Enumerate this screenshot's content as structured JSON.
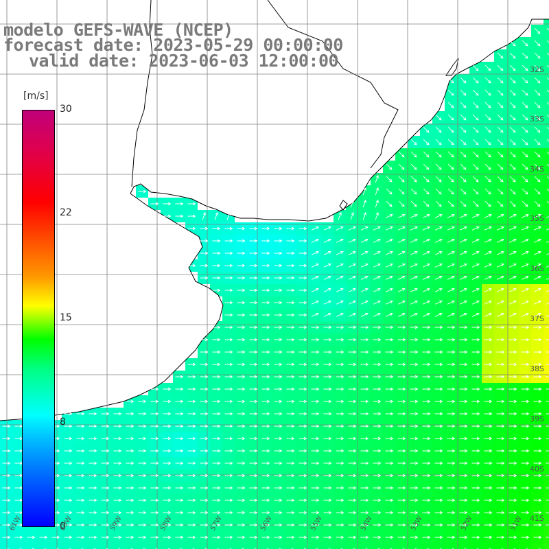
{
  "title": {
    "model": "modelo GEFS-WAVE (NCEP)",
    "forecast": "forecast date: 2023-05-29 00:00:00",
    "valid": "valid date: 2023-06-03 12:00:00"
  },
  "colorbar": {
    "unit": "[m/s]",
    "ticks": [
      "30",
      "22",
      "15",
      "8",
      "0"
    ],
    "tick_values": [
      30,
      22,
      15,
      8,
      0
    ],
    "min": 0,
    "max": 30
  },
  "lat_labels": [
    "32S",
    "33S",
    "34S",
    "35S",
    "36S",
    "37S",
    "38S",
    "39S",
    "40S",
    "41S"
  ],
  "lon_labels": [
    "61W",
    "60W",
    "59W",
    "58W",
    "57W",
    "56W",
    "55W",
    "54W",
    "53W",
    "52W",
    "51W"
  ],
  "colors": {
    "land": "#ffffff",
    "coast": "#000000",
    "grid": "#808080",
    "arrow": "#ffffff",
    "title": "#7a7a7a"
  },
  "field": {
    "description_units": "m/s",
    "wind_direction": "mostly from west/southwest toward east/northeast"
  }
}
